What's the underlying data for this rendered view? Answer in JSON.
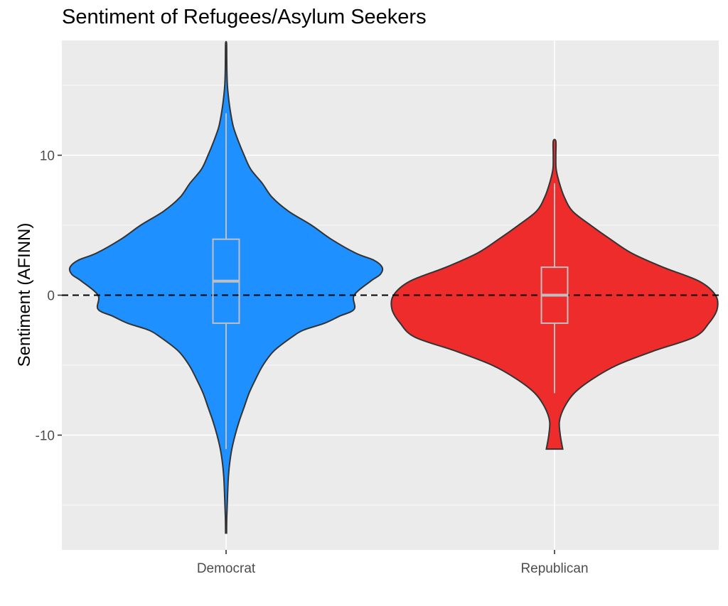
{
  "chart_data": {
    "type": "violin",
    "title": "Sentiment of Refugees/Asylum Seekers",
    "xlabel": "",
    "ylabel": "Sentiment (AFINN)",
    "categories": [
      "Democrat",
      "Republican"
    ],
    "ylim": [
      -18.2,
      18.2
    ],
    "yticks": [
      -10,
      0,
      10
    ],
    "reference_line": {
      "y": 0,
      "style": "dashed",
      "color": "#000000"
    },
    "grid": true,
    "colors": {
      "panel": "#ebebeb",
      "grid": "#ffffff",
      "outline": "#333333",
      "box": "#bfbfbf"
    },
    "series": [
      {
        "group": "Democrat",
        "color": "#1e90ff",
        "min": -17,
        "max": 18,
        "box": {
          "q1": -2,
          "median": 1,
          "q3": 4,
          "whisker_low": -11,
          "whisker_high": 13
        },
        "density_profile": [
          [
            -17,
            0.003
          ],
          [
            -16,
            0.004
          ],
          [
            -15,
            0.007
          ],
          [
            -14,
            0.01
          ],
          [
            -13,
            0.014
          ],
          [
            -12,
            0.022
          ],
          [
            -11,
            0.035
          ],
          [
            -10,
            0.055
          ],
          [
            -9,
            0.08
          ],
          [
            -8,
            0.11
          ],
          [
            -7,
            0.14
          ],
          [
            -6,
            0.18
          ],
          [
            -5,
            0.225
          ],
          [
            -4,
            0.29
          ],
          [
            -3,
            0.4
          ],
          [
            -2.5,
            0.47
          ],
          [
            -2,
            0.6
          ],
          [
            -1.5,
            0.69
          ],
          [
            -1,
            0.78
          ],
          [
            0,
            0.78
          ],
          [
            1,
            0.88
          ],
          [
            1.5,
            0.94
          ],
          [
            2,
            0.95
          ],
          [
            2.5,
            0.9
          ],
          [
            3,
            0.79
          ],
          [
            4,
            0.64
          ],
          [
            5,
            0.52
          ],
          [
            6,
            0.38
          ],
          [
            7,
            0.28
          ],
          [
            8,
            0.22
          ],
          [
            9,
            0.15
          ],
          [
            10,
            0.11
          ],
          [
            11,
            0.075
          ],
          [
            12,
            0.045
          ],
          [
            13,
            0.028
          ],
          [
            14,
            0.016
          ],
          [
            15,
            0.008
          ],
          [
            16,
            0.005
          ],
          [
            17,
            0.004
          ],
          [
            18,
            0.003
          ]
        ]
      },
      {
        "group": "Republican",
        "color": "#ee2c2c",
        "min": -11,
        "max": 11,
        "box": {
          "q1": -2,
          "median": 0,
          "q3": 2,
          "whisker_low": -7,
          "whisker_high": 8
        },
        "density_profile": [
          [
            -11,
            0.05
          ],
          [
            -10,
            0.035
          ],
          [
            -9,
            0.03
          ],
          [
            -8,
            0.06
          ],
          [
            -7,
            0.12
          ],
          [
            -6,
            0.23
          ],
          [
            -5,
            0.38
          ],
          [
            -4,
            0.6
          ],
          [
            -3,
            0.85
          ],
          [
            -2,
            0.94
          ],
          [
            -1,
            0.99
          ],
          [
            0,
            0.98
          ],
          [
            1,
            0.88
          ],
          [
            2,
            0.66
          ],
          [
            3,
            0.47
          ],
          [
            4,
            0.34
          ],
          [
            5,
            0.22
          ],
          [
            6,
            0.11
          ],
          [
            7,
            0.06
          ],
          [
            8,
            0.03
          ],
          [
            9,
            0.01
          ],
          [
            10,
            0.008
          ],
          [
            11,
            0.008
          ]
        ]
      }
    ]
  }
}
